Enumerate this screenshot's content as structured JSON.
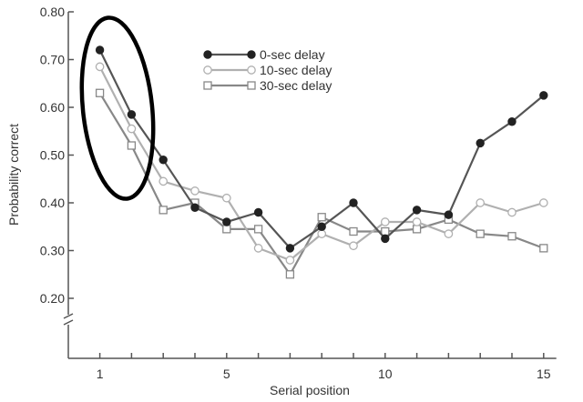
{
  "chart_data": {
    "type": "line",
    "xlabel": "Serial position",
    "ylabel": "Probability correct",
    "x": [
      1,
      2,
      3,
      4,
      5,
      6,
      7,
      8,
      9,
      10,
      11,
      12,
      13,
      14,
      15
    ],
    "xlim": [
      0.1,
      15.4
    ],
    "xticks": [
      1,
      5,
      10,
      15
    ],
    "xtick_labels": [
      "1",
      "5",
      "10",
      "15"
    ],
    "ylim": [
      0.0,
      0.8
    ],
    "yticks": [
      0.2,
      0.3,
      0.4,
      0.5,
      0.6,
      0.7,
      0.8
    ],
    "ytick_labels": [
      "0.20",
      "0.30",
      "0.40",
      "0.50",
      "0.60",
      "0.70",
      "0.80"
    ],
    "axis_break": "between 0 and 0.20 on y-axis",
    "grid": false,
    "legend_position": "top-center",
    "series": [
      {
        "name": "0-sec delay",
        "marker": "filled-circle",
        "color": "#555555",
        "values": [
          0.72,
          0.585,
          0.49,
          0.39,
          0.36,
          0.38,
          0.305,
          0.35,
          0.4,
          0.325,
          0.385,
          0.375,
          0.525,
          0.57,
          0.625
        ]
      },
      {
        "name": "10-sec delay",
        "marker": "open-circle",
        "color": "#b0b0b0",
        "values": [
          0.685,
          0.555,
          0.445,
          0.425,
          0.41,
          0.305,
          0.28,
          0.335,
          0.31,
          0.36,
          0.36,
          0.335,
          0.4,
          0.38,
          0.4
        ]
      },
      {
        "name": "30-sec delay",
        "marker": "open-square",
        "color": "#888888",
        "values": [
          0.63,
          0.52,
          0.385,
          0.4,
          0.345,
          0.345,
          0.25,
          0.37,
          0.34,
          0.34,
          0.345,
          0.365,
          0.335,
          0.33,
          0.305
        ]
      }
    ],
    "annotation": {
      "shape": "ellipse",
      "around_x": [
        1,
        2
      ],
      "color": "#000000"
    }
  }
}
